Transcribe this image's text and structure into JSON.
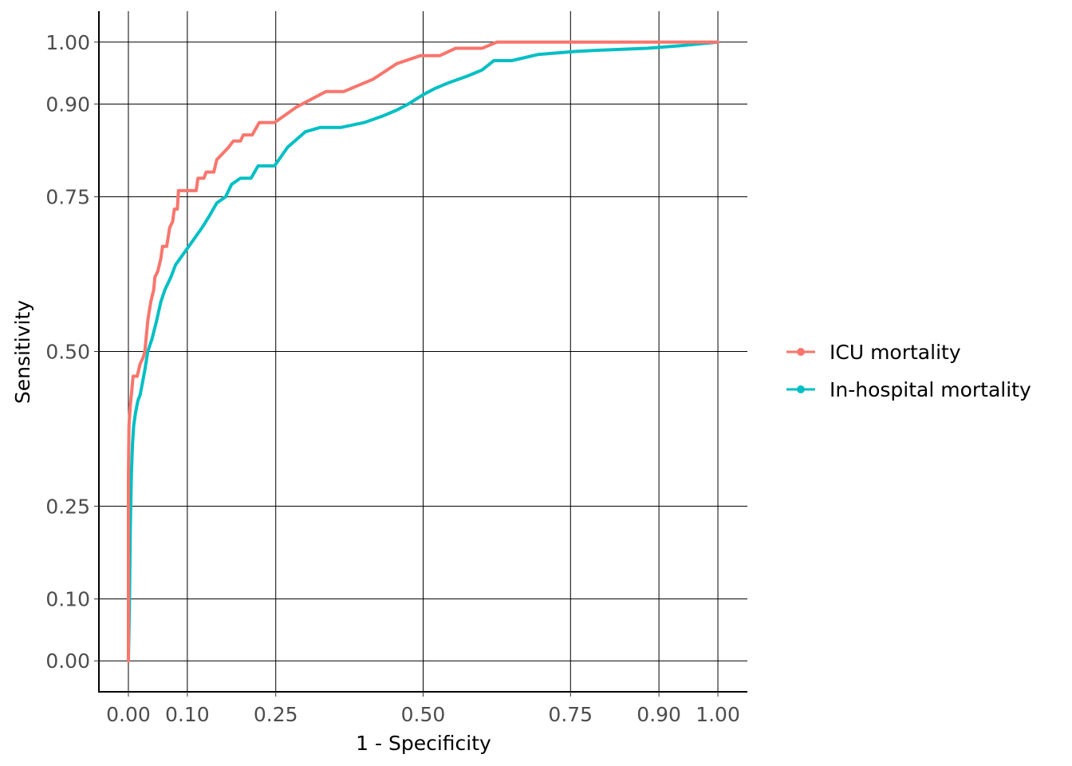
{
  "chart_data": {
    "type": "line",
    "xlabel": "1 - Specificity",
    "ylabel": "Sensitivity",
    "xlim": [
      -0.05,
      1.05
    ],
    "ylim": [
      -0.05,
      1.05
    ],
    "x_ticks": [
      0.0,
      0.1,
      0.25,
      0.5,
      0.75,
      0.9,
      1.0
    ],
    "y_ticks": [
      0.0,
      0.1,
      0.25,
      0.5,
      0.75,
      0.9,
      1.0
    ],
    "x_tick_labels": [
      "0.00",
      "0.10",
      "0.25",
      "0.50",
      "0.75",
      "0.90",
      "1.00"
    ],
    "y_tick_labels": [
      "0.00",
      "0.10",
      "0.25",
      "0.50",
      "0.75",
      "0.90",
      "1.00"
    ],
    "grid": true,
    "legend_position": "right",
    "series": [
      {
        "name": "ICU mortality",
        "color": "#F8766D",
        "points": [
          [
            0.0,
            0.0
          ],
          [
            0.0,
            0.3
          ],
          [
            0.001,
            0.38
          ],
          [
            0.003,
            0.41
          ],
          [
            0.005,
            0.43
          ],
          [
            0.008,
            0.46
          ],
          [
            0.015,
            0.46
          ],
          [
            0.02,
            0.48
          ],
          [
            0.025,
            0.49
          ],
          [
            0.028,
            0.5
          ],
          [
            0.03,
            0.52
          ],
          [
            0.033,
            0.55
          ],
          [
            0.038,
            0.58
          ],
          [
            0.043,
            0.6
          ],
          [
            0.045,
            0.62
          ],
          [
            0.05,
            0.63
          ],
          [
            0.055,
            0.65
          ],
          [
            0.058,
            0.67
          ],
          [
            0.065,
            0.67
          ],
          [
            0.07,
            0.7
          ],
          [
            0.075,
            0.71
          ],
          [
            0.078,
            0.73
          ],
          [
            0.083,
            0.73
          ],
          [
            0.085,
            0.76
          ],
          [
            0.115,
            0.76
          ],
          [
            0.118,
            0.78
          ],
          [
            0.128,
            0.78
          ],
          [
            0.132,
            0.79
          ],
          [
            0.145,
            0.79
          ],
          [
            0.15,
            0.81
          ],
          [
            0.16,
            0.82
          ],
          [
            0.17,
            0.83
          ],
          [
            0.178,
            0.84
          ],
          [
            0.19,
            0.84
          ],
          [
            0.195,
            0.85
          ],
          [
            0.21,
            0.85
          ],
          [
            0.222,
            0.87
          ],
          [
            0.248,
            0.87
          ],
          [
            0.285,
            0.895
          ],
          [
            0.335,
            0.92
          ],
          [
            0.365,
            0.92
          ],
          [
            0.415,
            0.94
          ],
          [
            0.455,
            0.965
          ],
          [
            0.495,
            0.978
          ],
          [
            0.528,
            0.978
          ],
          [
            0.555,
            0.99
          ],
          [
            0.6,
            0.99
          ],
          [
            0.625,
            1.0
          ],
          [
            1.0,
            1.0
          ]
        ]
      },
      {
        "name": "In-hospital mortality",
        "color": "#00BFC4",
        "points": [
          [
            0.0,
            0.0
          ],
          [
            0.002,
            0.1
          ],
          [
            0.003,
            0.2
          ],
          [
            0.004,
            0.25
          ],
          [
            0.005,
            0.3
          ],
          [
            0.007,
            0.35
          ],
          [
            0.009,
            0.38
          ],
          [
            0.012,
            0.4
          ],
          [
            0.016,
            0.42
          ],
          [
            0.02,
            0.43
          ],
          [
            0.024,
            0.45
          ],
          [
            0.028,
            0.47
          ],
          [
            0.033,
            0.5
          ],
          [
            0.04,
            0.52
          ],
          [
            0.048,
            0.55
          ],
          [
            0.055,
            0.58
          ],
          [
            0.062,
            0.6
          ],
          [
            0.072,
            0.62
          ],
          [
            0.08,
            0.64
          ],
          [
            0.095,
            0.66
          ],
          [
            0.11,
            0.68
          ],
          [
            0.125,
            0.7
          ],
          [
            0.138,
            0.72
          ],
          [
            0.15,
            0.74
          ],
          [
            0.165,
            0.75
          ],
          [
            0.175,
            0.77
          ],
          [
            0.19,
            0.78
          ],
          [
            0.208,
            0.78
          ],
          [
            0.22,
            0.8
          ],
          [
            0.248,
            0.8
          ],
          [
            0.27,
            0.83
          ],
          [
            0.3,
            0.855
          ],
          [
            0.325,
            0.862
          ],
          [
            0.36,
            0.862
          ],
          [
            0.4,
            0.87
          ],
          [
            0.43,
            0.88
          ],
          [
            0.455,
            0.89
          ],
          [
            0.475,
            0.9
          ],
          [
            0.5,
            0.915
          ],
          [
            0.52,
            0.925
          ],
          [
            0.545,
            0.935
          ],
          [
            0.575,
            0.945
          ],
          [
            0.6,
            0.955
          ],
          [
            0.62,
            0.97
          ],
          [
            0.65,
            0.97
          ],
          [
            0.695,
            0.98
          ],
          [
            0.76,
            0.985
          ],
          [
            0.8,
            0.987
          ],
          [
            0.88,
            0.99
          ],
          [
            0.935,
            0.994
          ],
          [
            1.0,
            1.0
          ]
        ]
      }
    ]
  }
}
